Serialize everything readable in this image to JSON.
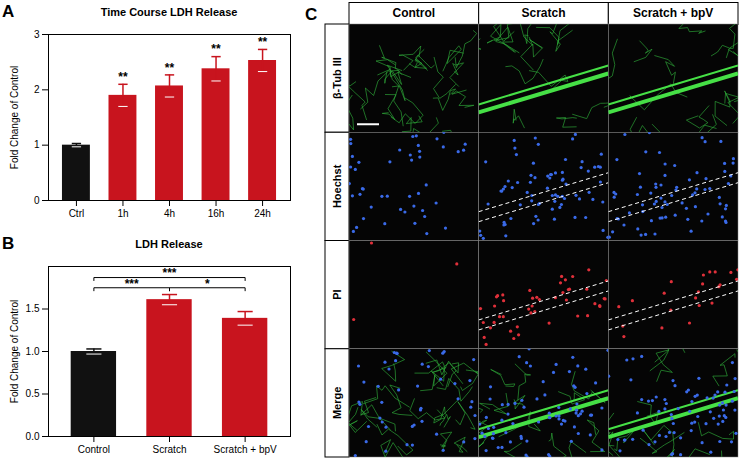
{
  "chart_data": [
    {
      "panel": "A",
      "type": "bar",
      "title": "Time Course LDH Release",
      "y_label": "Fold Change of Control",
      "categories": [
        "Ctrl",
        "1h",
        "4h",
        "16h",
        "24h"
      ],
      "values": [
        1.0,
        1.9,
        2.07,
        2.38,
        2.53
      ],
      "errors": [
        0.03,
        0.2,
        0.2,
        0.22,
        0.2
      ],
      "colors": [
        "#111111",
        "#c8141e",
        "#c8141e",
        "#c8141e",
        "#c8141e"
      ],
      "ylim": [
        0,
        3
      ],
      "yticks": [
        0,
        1,
        2,
        3
      ],
      "significance": [
        {
          "category": "1h",
          "label": "**"
        },
        {
          "category": "4h",
          "label": "**"
        },
        {
          "category": "16h",
          "label": "**"
        },
        {
          "category": "24h",
          "label": "**"
        }
      ]
    },
    {
      "panel": "B",
      "type": "bar",
      "title": "LDH Release",
      "y_label": "Fold Change of Control",
      "categories": [
        "Control",
        "Scratch",
        "Scratch + bpV"
      ],
      "values": [
        1.0,
        1.61,
        1.39
      ],
      "errors": [
        0.03,
        0.06,
        0.08
      ],
      "colors": [
        "#111111",
        "#c8141e",
        "#c8141e"
      ],
      "ylim": [
        0,
        2
      ],
      "yticks": [
        {
          "value": 0,
          "label": "0.0"
        },
        {
          "value": 0.5,
          "label": "0.5"
        },
        {
          "value": 1,
          "label": "1.0"
        },
        {
          "value": 1.5,
          "label": "1.5"
        }
      ],
      "comparisons": [
        {
          "from": "Control",
          "to": "Scratch",
          "label": "***"
        },
        {
          "from": "Control",
          "to": "Scratch + bpV",
          "label": "***"
        },
        {
          "from": "Scratch",
          "to": "Scratch + bpV",
          "label": "*"
        }
      ]
    }
  ],
  "image_grid": {
    "panel": "C",
    "columns": [
      "Control",
      "Scratch",
      "Scratch + bpV"
    ],
    "rows": [
      "β-Tub III",
      "Hoechst",
      "PI",
      "Merge"
    ]
  }
}
